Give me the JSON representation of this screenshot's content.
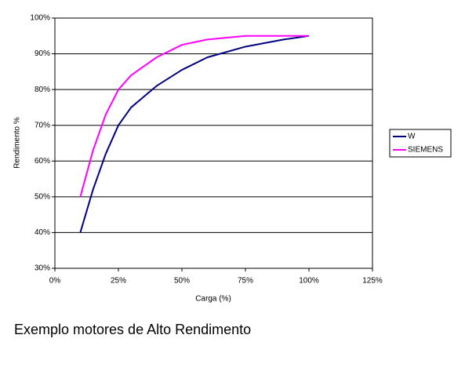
{
  "chart_data": {
    "type": "line",
    "x_label": "Carga (%)",
    "y_label": "Rendimento %",
    "x": [
      10,
      15,
      20,
      25,
      30,
      40,
      50,
      60,
      75,
      90,
      100
    ],
    "series": [
      {
        "name": "W",
        "color": "#000080",
        "values": [
          40,
          52,
          62,
          70,
          75,
          81,
          85.5,
          89,
          92,
          94,
          95
        ]
      },
      {
        "name": "SIEMENS",
        "color": "#ff00ff",
        "values": [
          50,
          63,
          73,
          80,
          84,
          89,
          92.5,
          94,
          95,
          95,
          95
        ]
      }
    ],
    "xlim": [
      0,
      125
    ],
    "xticks": [
      {
        "value": 0,
        "label": "0%"
      },
      {
        "value": 25,
        "label": "25%"
      },
      {
        "value": 50,
        "label": "50%"
      },
      {
        "value": 75,
        "label": "75%"
      },
      {
        "value": 100,
        "label": "100%"
      },
      {
        "value": 125,
        "label": "125%"
      }
    ],
    "ylim": [
      30,
      100
    ],
    "yticks": [
      {
        "value": 30,
        "label": "30%"
      },
      {
        "value": 40,
        "label": "40%"
      },
      {
        "value": 50,
        "label": "50%"
      },
      {
        "value": 60,
        "label": "60%"
      },
      {
        "value": 70,
        "label": "70%"
      },
      {
        "value": 80,
        "label": "80%"
      },
      {
        "value": 90,
        "label": "90%"
      },
      {
        "value": 100,
        "label": "100%"
      }
    ],
    "grid": true,
    "legend": "right"
  },
  "caption": "Exemplo motores de Alto Rendimento"
}
